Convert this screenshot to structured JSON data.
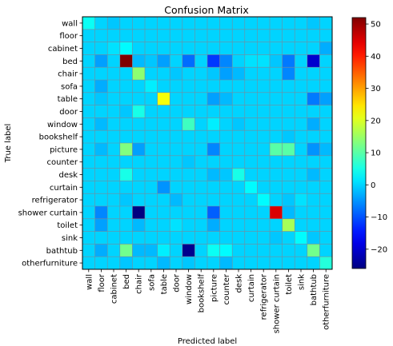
{
  "chart_data": {
    "type": "heatmap",
    "title": "Confusion Matrix",
    "xlabel": "Predicted label",
    "ylabel": "True label",
    "labels": [
      "wall",
      "floor",
      "cabinet",
      "bed",
      "chair",
      "sofa",
      "table",
      "door",
      "window",
      "bookshelf",
      "picture",
      "counter",
      "desk",
      "curtain",
      "refrigerator",
      "shower curtain",
      "toilet",
      "sink",
      "bathtub",
      "otherfurniture"
    ],
    "colormap": "jet",
    "vmin": -26,
    "vmax": 52,
    "colorbar_ticks": [
      -20,
      -10,
      0,
      10,
      20,
      30,
      40,
      50
    ],
    "colorbar_tick_labels": [
      "−20",
      "−10",
      "0",
      "10",
      "20",
      "30",
      "40",
      "50"
    ],
    "grid": true,
    "matrix": [
      [
        4,
        0,
        -1,
        0,
        0,
        0,
        0,
        0,
        0,
        0,
        0,
        0,
        0,
        0,
        0,
        0,
        0,
        0,
        -1,
        0
      ],
      [
        0,
        0,
        0,
        0,
        0,
        0,
        0,
        0,
        0,
        0,
        0,
        0,
        0,
        0,
        0,
        0,
        0,
        0,
        0,
        0
      ],
      [
        0,
        0,
        1,
        3,
        0,
        0,
        0,
        0,
        0,
        0,
        0,
        0,
        0,
        0,
        0,
        0,
        0,
        0,
        0,
        -3
      ],
      [
        0,
        -4,
        0,
        52,
        -2,
        -1,
        -4,
        0,
        -8,
        0,
        -12,
        -6,
        0,
        1,
        1,
        -1,
        -7,
        0,
        -20,
        0
      ],
      [
        0,
        0,
        0,
        0,
        14,
        0,
        0,
        -1,
        0,
        0,
        -1,
        -4,
        -2,
        0,
        0,
        0,
        -6,
        0,
        0,
        0
      ],
      [
        0,
        -3,
        0,
        0,
        0,
        2,
        0,
        0,
        0,
        0,
        0,
        0,
        0,
        0,
        0,
        0,
        0,
        0,
        0,
        0
      ],
      [
        0,
        -1,
        0,
        0,
        0,
        0,
        22,
        0,
        0,
        0,
        -4,
        -2,
        0,
        0,
        0,
        0,
        0,
        0,
        -7,
        -4
      ],
      [
        0,
        0,
        0,
        -1,
        5,
        0,
        0,
        0,
        0,
        0,
        0,
        0,
        0,
        0,
        0,
        0,
        0,
        0,
        0,
        0
      ],
      [
        0,
        -2,
        0,
        0,
        0,
        0,
        0,
        0,
        8,
        0,
        2,
        0,
        -1,
        0,
        0,
        0,
        0,
        0,
        -3,
        0
      ],
      [
        0,
        0,
        0,
        0,
        0,
        0,
        0,
        0,
        0,
        0,
        0,
        0,
        0,
        0,
        0,
        0,
        -1,
        0,
        0,
        0
      ],
      [
        0,
        -2,
        0,
        13,
        -4,
        0,
        0,
        0,
        0,
        0,
        -6,
        0,
        0,
        0,
        0,
        10,
        10,
        0,
        -5,
        -2
      ],
      [
        0,
        0,
        0,
        0,
        0,
        0,
        0,
        0,
        -1,
        0,
        0,
        0,
        0,
        0,
        0,
        0,
        0,
        0,
        0,
        0
      ],
      [
        0,
        0,
        0,
        5,
        0,
        0,
        0,
        0,
        0,
        0,
        -2,
        -1,
        5,
        0,
        0,
        0,
        0,
        0,
        -2,
        0
      ],
      [
        0,
        0,
        0,
        0,
        0,
        0,
        -5,
        0,
        0,
        0,
        0,
        0,
        0,
        3,
        0,
        0,
        0,
        0,
        0,
        0
      ],
      [
        0,
        0,
        0,
        -1,
        0,
        0,
        0,
        -2,
        0,
        0,
        0,
        0,
        0,
        0,
        3,
        0,
        -1,
        1,
        0,
        0
      ],
      [
        0,
        -6,
        0,
        0,
        -26,
        0,
        0,
        0,
        0,
        0,
        -9,
        0,
        0,
        0,
        0,
        45,
        -2,
        0,
        0,
        0
      ],
      [
        0,
        -4,
        0,
        0,
        -2,
        0,
        0,
        1,
        0,
        0,
        -3,
        0,
        0,
        0,
        0,
        0,
        16,
        0,
        0,
        0
      ],
      [
        0,
        0,
        0,
        0,
        0,
        0,
        0,
        0,
        0,
        0,
        0,
        0,
        0,
        0,
        0,
        -1,
        0,
        3,
        -1,
        0
      ],
      [
        0,
        -3,
        0,
        12,
        -2,
        -2,
        2,
        0,
        -25,
        0,
        4,
        3,
        0,
        0,
        0,
        0,
        0,
        0,
        12,
        0
      ],
      [
        0,
        0,
        0,
        -1,
        0,
        0,
        -2,
        0,
        -1,
        0,
        0,
        -2,
        0,
        0,
        0,
        0,
        0,
        0,
        0,
        6
      ]
    ]
  }
}
